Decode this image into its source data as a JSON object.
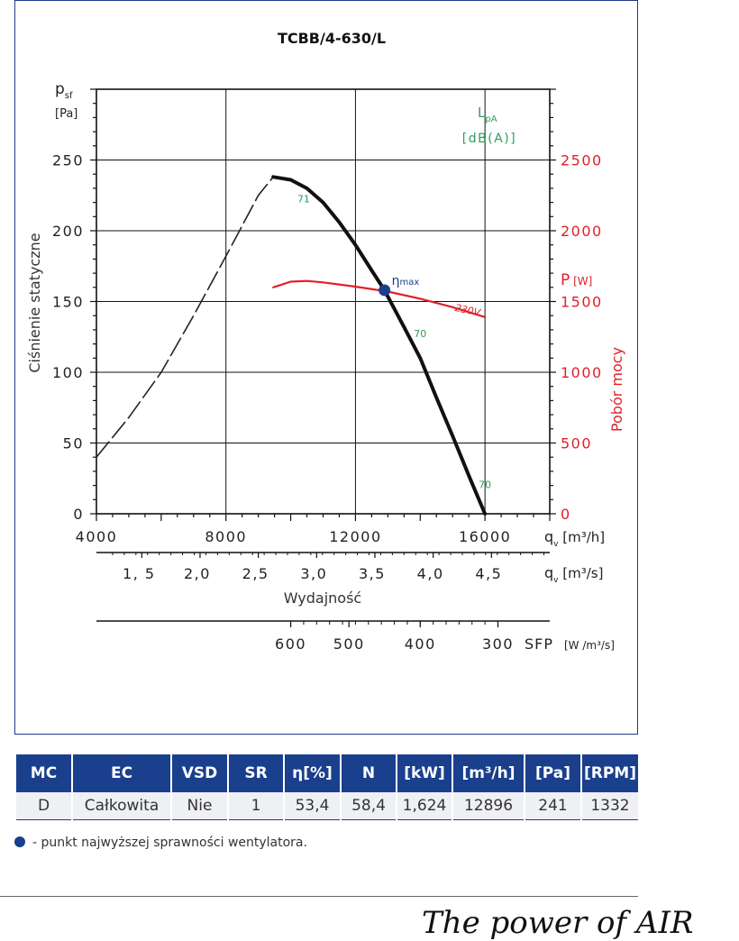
{
  "chart_data": {
    "type": "line",
    "title": "TCBB/4-630/L",
    "y_axis": {
      "symbol": "p",
      "subscript": "sf",
      "unit": "[Pa]",
      "label": "Ciśnienie statyczne",
      "ticks": [
        0,
        50,
        100,
        150,
        200,
        250
      ],
      "range": [
        0,
        300
      ]
    },
    "x_axis": {
      "symbol": "q",
      "subscript": "v",
      "unit": "[m³/h]",
      "ticks": [
        4000,
        8000,
        12000,
        16000
      ],
      "range": [
        4000,
        18000
      ]
    },
    "x_axis_secondary": {
      "symbol": "q",
      "subscript": "v",
      "unit": "[m³/s]",
      "label": "Wydajność",
      "ticks": [
        "1, 5",
        "2,0",
        "2,5",
        "3,0",
        "3,5",
        "4,0",
        "4,5"
      ],
      "tick_values_m3h": [
        5400,
        7200,
        9000,
        10800,
        12600,
        14400,
        16200
      ]
    },
    "sfp_axis": {
      "label": "SFP",
      "unit": "[W /m³/s]",
      "ticks": [
        "600",
        "500",
        "400",
        "300"
      ],
      "tick_positions_m3h": [
        10000,
        11800,
        14000,
        16400
      ]
    },
    "y_axis_right": {
      "symbol": "P",
      "unit": "[W]",
      "label": "Pobór mocy",
      "ticks": [
        "0",
        "500",
        "1000",
        "1500",
        "2000",
        "2500"
      ],
      "range": [
        0,
        3000
      ]
    },
    "noise_label": {
      "symbol": "L",
      "subscript": "pA",
      "unit": "[dB(A)]"
    },
    "series": [
      {
        "role": "unstable",
        "color": "#222222",
        "points": [
          [
            4000,
            40
          ],
          [
            5000,
            68
          ],
          [
            6000,
            100
          ],
          [
            7000,
            140
          ],
          [
            8000,
            182
          ],
          [
            9000,
            225
          ],
          [
            9460,
            238
          ]
        ]
      },
      {
        "role": "pressure",
        "color": "#111111",
        "points": [
          [
            9460,
            238
          ],
          [
            10000,
            236
          ],
          [
            10500,
            230
          ],
          [
            11000,
            220
          ],
          [
            11500,
            206
          ],
          [
            12000,
            190
          ],
          [
            12500,
            172
          ],
          [
            12896,
            158
          ],
          [
            13500,
            132
          ],
          [
            14000,
            110
          ],
          [
            14500,
            82
          ],
          [
            15000,
            55
          ],
          [
            15500,
            27
          ],
          [
            16000,
            0
          ]
        ]
      },
      {
        "name": "230V",
        "role": "power",
        "color": "#e0202a",
        "points_w": [
          [
            9460,
            1600
          ],
          [
            10000,
            1640
          ],
          [
            10500,
            1645
          ],
          [
            11000,
            1635
          ],
          [
            12000,
            1605
          ],
          [
            13000,
            1570
          ],
          [
            14000,
            1520
          ],
          [
            15000,
            1460
          ],
          [
            16000,
            1390
          ]
        ]
      }
    ],
    "noise_labels": [
      {
        "text": "71",
        "x": 10400,
        "y": 220
      },
      {
        "text": "70",
        "x": 14000,
        "y": 125
      },
      {
        "text": "70",
        "x": 16000,
        "y": 18
      }
    ],
    "eta_max": {
      "x": 12896,
      "y": 158,
      "label": "η",
      "sublabel": "max"
    },
    "colors": {
      "accent_blue": "#1a3f8c",
      "power_red": "#e0202a",
      "noise_green": "#2e9e5b"
    }
  },
  "table": {
    "headers": [
      "MC",
      "EC",
      "VSD",
      "SR",
      "η[%]",
      "N",
      "[kW]",
      "[m³/h]",
      "[Pa]",
      "[RPM]"
    ],
    "row": [
      "D",
      "Całkowita",
      "Nie",
      "1",
      "53,4",
      "58,4",
      "1,624",
      "12896",
      "241",
      "1332"
    ]
  },
  "legend": {
    "text": "- punkt najwyższej sprawności wentylatora."
  },
  "footer": {
    "logo": "The power of AIR"
  }
}
